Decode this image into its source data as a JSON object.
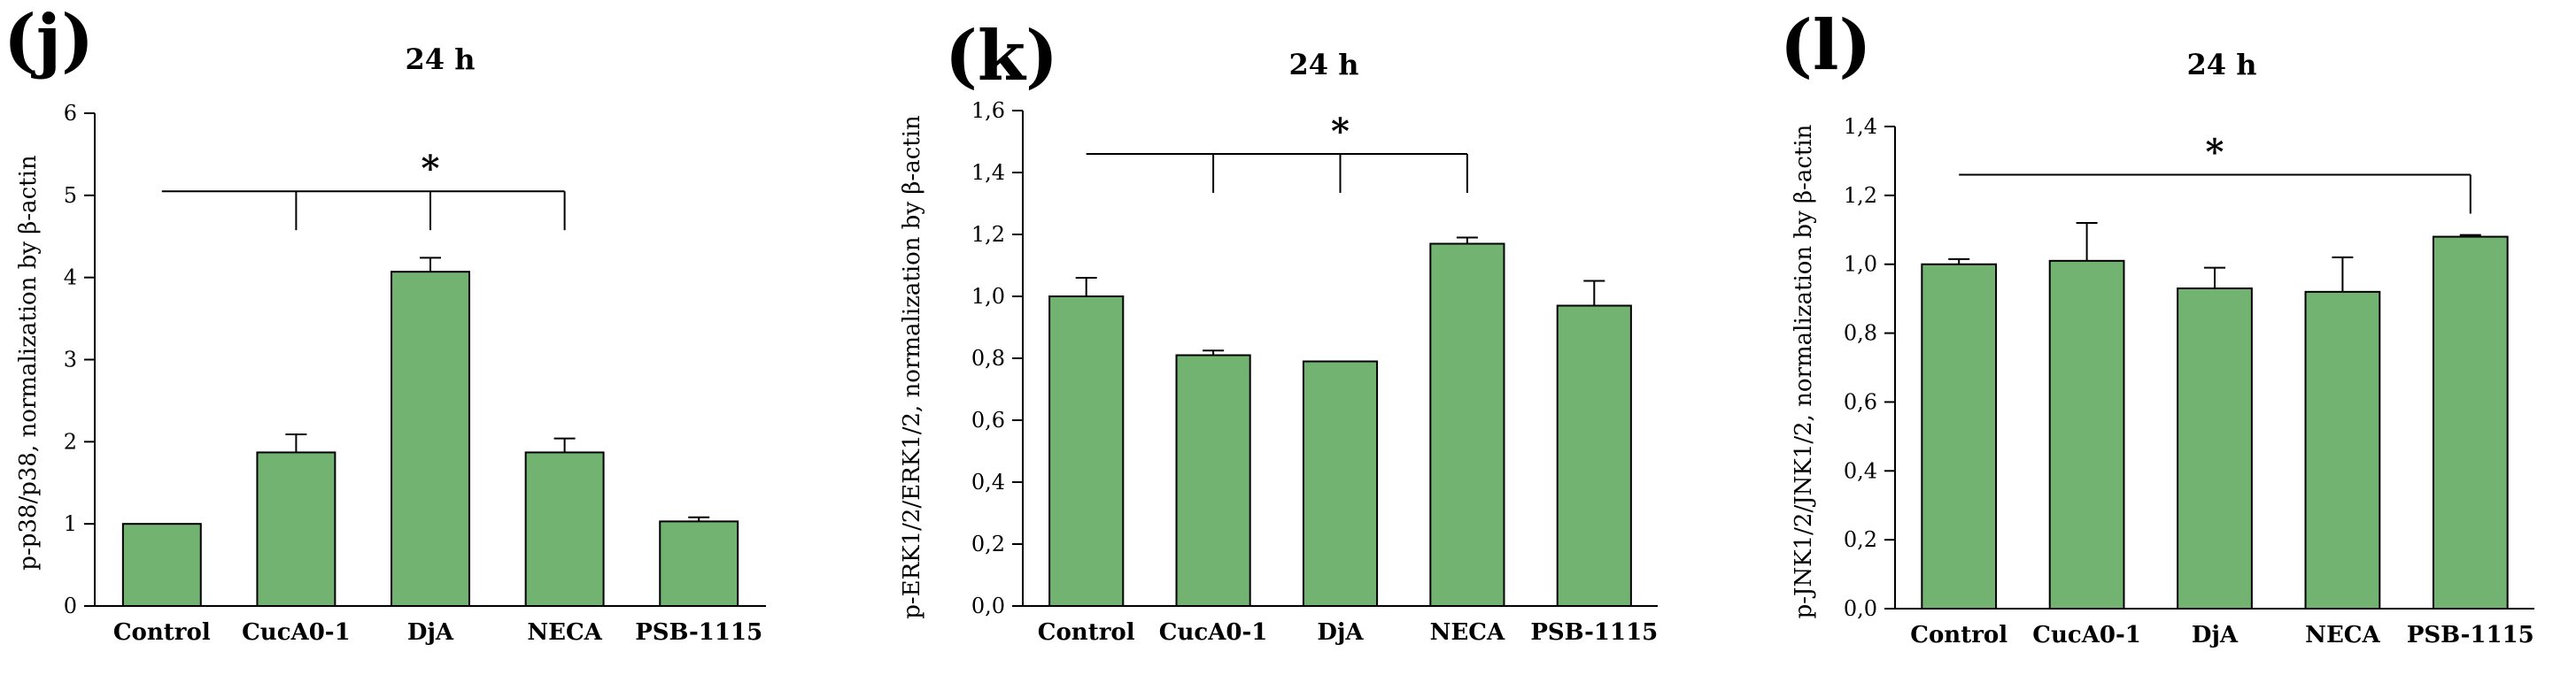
{
  "chart_data": [
    {
      "id": "j",
      "type": "bar",
      "panel_label": "(j)",
      "title": "24 h",
      "ylabel": "p-p38/p38, normalization by β-actin",
      "xlabel": "",
      "categories": [
        "Control",
        "CucA0-1",
        "DjA",
        "NECA",
        "PSB-1115"
      ],
      "values": [
        1.0,
        1.87,
        4.07,
        1.87,
        1.03
      ],
      "errors": [
        0.0,
        0.22,
        0.17,
        0.17,
        0.05
      ],
      "ylim": [
        0,
        6
      ],
      "yticks": [
        0,
        1,
        2,
        3,
        4,
        5,
        6
      ],
      "ytick_labels": [
        "0",
        "1",
        "2",
        "3",
        "4",
        "5",
        "6"
      ],
      "significance": {
        "label": "*",
        "from": 0,
        "to": [
          1,
          2,
          3
        ],
        "y": 5.05
      },
      "bar_color": "#72b372"
    },
    {
      "id": "k",
      "type": "bar",
      "panel_label": "(k)",
      "title": "24 h",
      "ylabel": "p-ERK1/2/ERK1/2, normalization by β-actin",
      "xlabel": "",
      "categories": [
        "Control",
        "CucA0-1",
        "DjA",
        "NECA",
        "PSB-1115"
      ],
      "values": [
        1.0,
        0.81,
        0.79,
        1.17,
        0.97
      ],
      "errors": [
        0.06,
        0.015,
        0.0,
        0.02,
        0.08
      ],
      "ylim": [
        0,
        1.6
      ],
      "yticks": [
        0,
        0.2,
        0.4,
        0.6,
        0.8,
        1.0,
        1.2,
        1.4,
        1.6
      ],
      "ytick_labels": [
        "0,0",
        "0,2",
        "0,4",
        "0,6",
        "0,8",
        "1,0",
        "1,2",
        "1,4",
        "1,6"
      ],
      "significance": {
        "label": "*",
        "from": 0,
        "to": [
          1,
          2,
          3
        ],
        "y": 1.46
      },
      "bar_color": "#72b372"
    },
    {
      "id": "l",
      "type": "bar",
      "panel_label": "(l)",
      "title": "24 h",
      "ylabel": "p-JNK1/2/JNK1/2, normalization by β-actin",
      "xlabel": "",
      "categories": [
        "Control",
        "CucA0-1",
        "DjA",
        "NECA",
        "PSB-1115"
      ],
      "values": [
        1.0,
        1.01,
        0.93,
        0.92,
        1.08
      ],
      "errors": [
        0.015,
        0.11,
        0.06,
        0.1,
        0.005
      ],
      "ylim": [
        0,
        1.4
      ],
      "yticks": [
        0,
        0.2,
        0.4,
        0.6,
        0.8,
        1.0,
        1.2,
        1.4
      ],
      "ytick_labels": [
        "0,0",
        "0,2",
        "0,4",
        "0,6",
        "0,8",
        "1,0",
        "1,2",
        "1,4"
      ],
      "significance": {
        "label": "*",
        "from": 0,
        "to": [
          4
        ],
        "y": 1.26
      },
      "bar_color": "#72b372"
    }
  ]
}
